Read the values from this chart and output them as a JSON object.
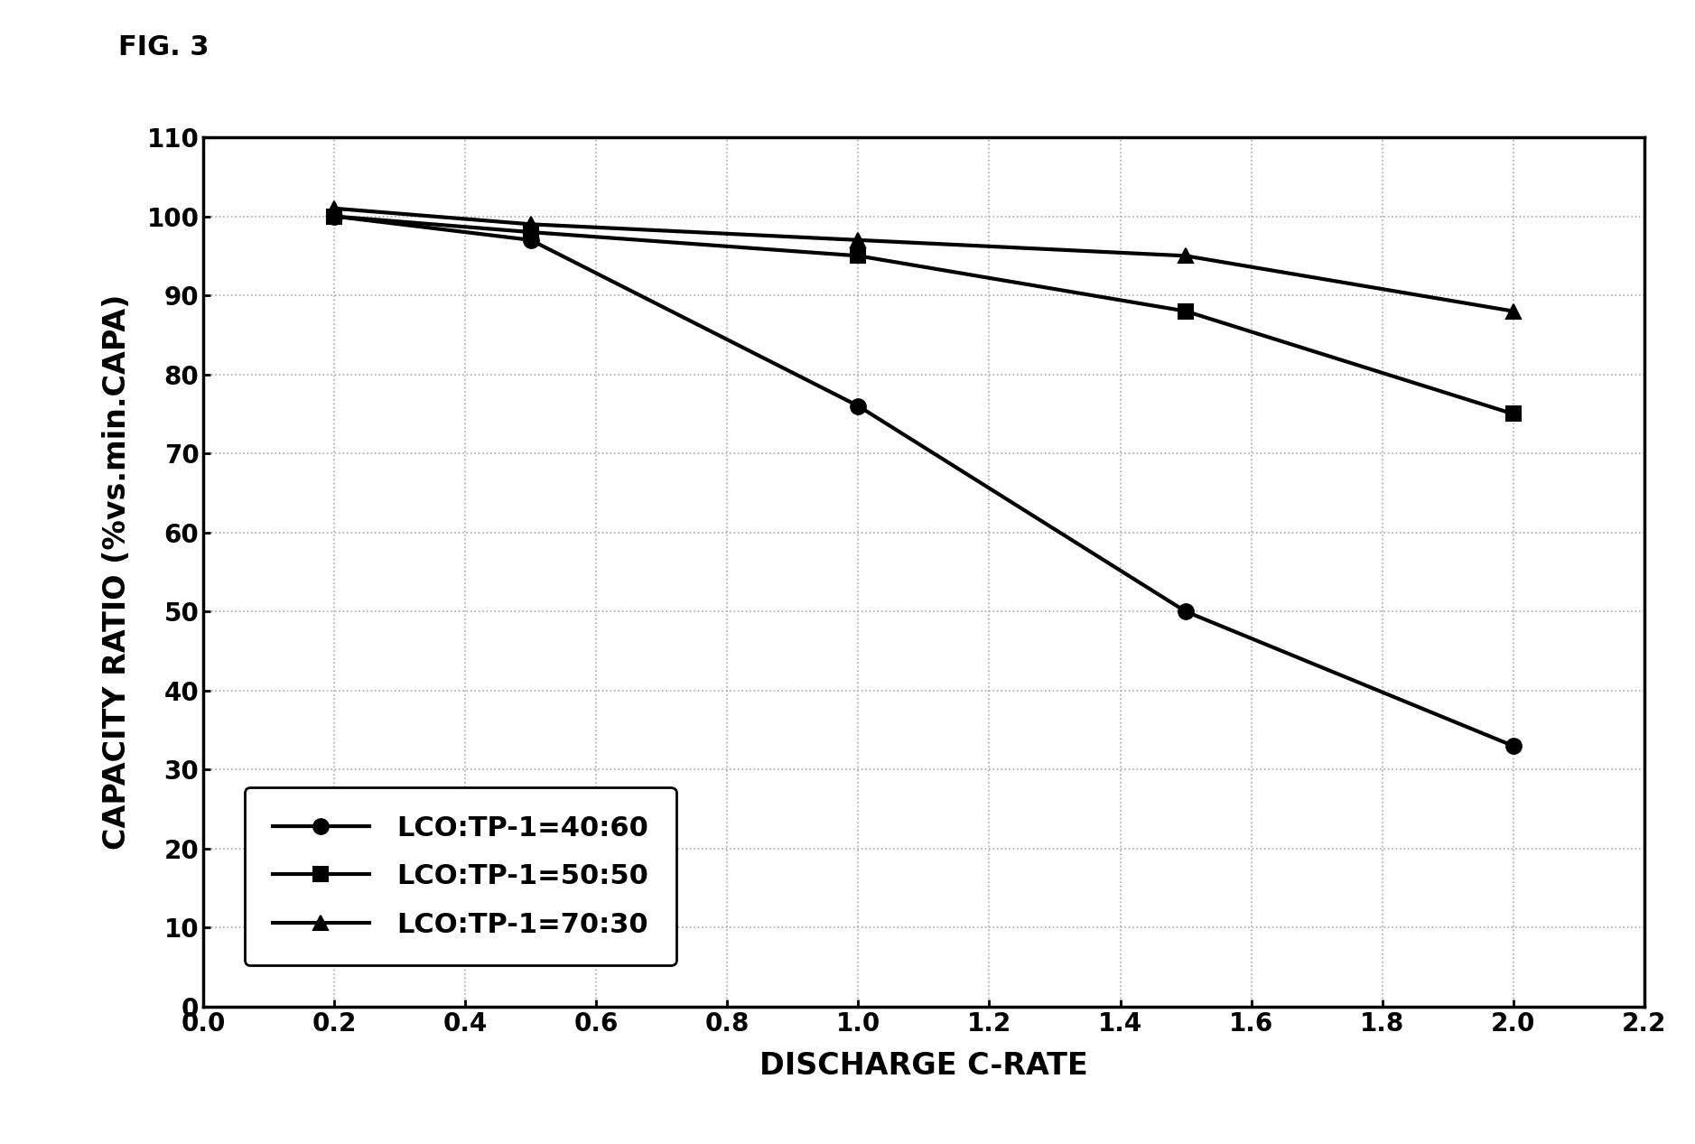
{
  "title": "FIG. 3",
  "xlabel": "DISCHARGE C-RATE",
  "ylabel": "CAPACITY RATIO (%vs.min.CAPA)",
  "xlim": [
    0.1,
    2.2
  ],
  "ylim": [
    0,
    110
  ],
  "xticks": [
    0.0,
    0.2,
    0.4,
    0.6,
    0.8,
    1.0,
    1.2,
    1.4,
    1.6,
    1.8,
    2.0,
    2.2
  ],
  "xtick_labels": [
    "0.0",
    "0.2",
    "0.4",
    "0.6",
    "0.8",
    "1.0",
    "1.2",
    "1.4",
    "1.6",
    "1.8",
    "2.0",
    "2.2"
  ],
  "yticks": [
    0,
    10,
    20,
    30,
    40,
    50,
    60,
    70,
    80,
    90,
    100,
    110
  ],
  "ytick_labels": [
    "0",
    "10",
    "20",
    "30",
    "40",
    "50",
    "60",
    "70",
    "80",
    "90",
    "100",
    "110"
  ],
  "series": [
    {
      "label": "LCO:TP-1=40:60",
      "x": [
        0.2,
        0.5,
        1.0,
        1.5,
        2.0
      ],
      "y": [
        100,
        97,
        76,
        50,
        33
      ],
      "marker": "o",
      "color": "#000000",
      "linewidth": 3.0,
      "markersize": 12,
      "linestyle": "-"
    },
    {
      "label": "LCO:TP-1=50:50",
      "x": [
        0.2,
        0.5,
        1.0,
        1.5,
        2.0
      ],
      "y": [
        100,
        98,
        95,
        88,
        75
      ],
      "marker": "s",
      "color": "#000000",
      "linewidth": 3.0,
      "markersize": 12,
      "linestyle": "-"
    },
    {
      "label": "LCO:TP-1=70:30",
      "x": [
        0.2,
        0.5,
        1.0,
        1.5,
        2.0
      ],
      "y": [
        101,
        99,
        97,
        95,
        88
      ],
      "marker": "^",
      "color": "#000000",
      "linewidth": 3.0,
      "markersize": 12,
      "linestyle": "-"
    }
  ],
  "grid_color": "#aaaaaa",
  "grid_linestyle": ":",
  "grid_linewidth": 1.2,
  "background_color": "#ffffff",
  "legend_loc": "lower left",
  "legend_fontsize": 22,
  "axis_fontsize": 24,
  "tick_fontsize": 20,
  "title_fontsize": 22
}
